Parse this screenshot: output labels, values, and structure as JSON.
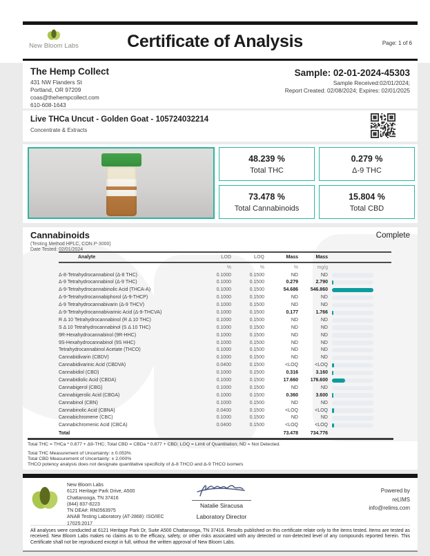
{
  "header": {
    "lab_name": "New Bloom Labs",
    "title": "Certificate of Analysis",
    "page": "Page: 1 of 6"
  },
  "client": {
    "name": "The Hemp Collect",
    "lines": [
      "431 NW Flanders St",
      "Portland, OR 97209",
      "coas@thehempcollect.com",
      "610-608-1643"
    ]
  },
  "sample": {
    "id": "Sample: 02-01-2024-45303",
    "lines": [
      "Sample Received:02/01/2024;",
      "Report Created: 02/08/2024; Expires: 02/01/2025"
    ]
  },
  "product": {
    "name": "Live THCa Uncut - Golden Goat - 105724032214",
    "category": "Concentrate & Extracts"
  },
  "summary_boxes": [
    {
      "value": "48.239 %",
      "label": "Total THC"
    },
    {
      "value": "0.279 %",
      "label": "Δ-9 THC"
    },
    {
      "value": "73.478 %",
      "label": "Total Cannabinoids"
    },
    {
      "value": "15.804 %",
      "label": "Total CBD"
    }
  ],
  "cannabinoids": {
    "title": "Cannabinoids",
    "status": "Complete",
    "method": "(Testing Method HPLC, CON P-3000)",
    "date_tested": "Date Tested: 02/01/2024",
    "columns": {
      "analyte": "Analyte",
      "lod": "LOD",
      "loq": "LOQ",
      "mass": "Mass",
      "mgg": "Mass"
    },
    "units": {
      "lod": "%",
      "loq": "%",
      "mass": "%",
      "mgg": "mg/g"
    },
    "max_bar_value": 54.686,
    "rows": [
      {
        "analyte": "Δ-8-Tetrahydrocannabinol (Δ-8 THC)",
        "lod": "0.1000",
        "loq": "0.1500",
        "mass": "ND",
        "mgg": "ND"
      },
      {
        "analyte": "Δ-9 Tetrahydrocannabinol (Δ-9 THC)",
        "lod": "0.1000",
        "loq": "0.1500",
        "mass": "0.279",
        "mgg": "2.790"
      },
      {
        "analyte": "Δ-9-Tetrahydrocannabinolic Acid (THCA-A)",
        "lod": "0.1000",
        "loq": "0.1500",
        "mass": "54.686",
        "mgg": "546.860"
      },
      {
        "analyte": "Δ-9-Tetrahydrocannabiphorol (Δ-9-THCP)",
        "lod": "0.1000",
        "loq": "0.1500",
        "mass": "ND",
        "mgg": "ND"
      },
      {
        "analyte": "Δ-9 Tetrahydrocannabivarin (Δ-9 THCV)",
        "lod": "0.1000",
        "loq": "0.1500",
        "mass": "ND",
        "mgg": "ND"
      },
      {
        "analyte": "Δ-9-Tetrahydrocannabivarinic Acid (Δ-9-THCVA)",
        "lod": "0.1000",
        "loq": "0.1500",
        "mass": "0.177",
        "mgg": "1.766"
      },
      {
        "analyte": "R Δ 10 Tetrahydrocannabinol (R Δ 10 THC)",
        "lod": "0.1000",
        "loq": "0.1500",
        "mass": "ND",
        "mgg": "ND"
      },
      {
        "analyte": "S Δ 10 Tetrahydrocannabinol (S Δ 10 THC)",
        "lod": "0.1000",
        "loq": "0.1500",
        "mass": "ND",
        "mgg": "ND"
      },
      {
        "analyte": "9R-Hexahydrocannabinol (9R-HHC)",
        "lod": "0.1000",
        "loq": "0.1500",
        "mass": "ND",
        "mgg": "ND"
      },
      {
        "analyte": "9S-Hexahydrocannabinol (9S HHC)",
        "lod": "0.1000",
        "loq": "0.1500",
        "mass": "ND",
        "mgg": "ND"
      },
      {
        "analyte": "Tetrahydrocannabinol Acetate (THCO)",
        "lod": "0.1000",
        "loq": "0.1500",
        "mass": "ND",
        "mgg": "ND"
      },
      {
        "analyte": "Cannabidivarin (CBDV)",
        "lod": "0.1000",
        "loq": "0.1500",
        "mass": "ND",
        "mgg": "ND"
      },
      {
        "analyte": "Cannabidivarinic Acid (CBDVA)",
        "lod": "0.0400",
        "loq": "0.1500",
        "mass": "<LOQ",
        "mgg": "<LOQ"
      },
      {
        "analyte": "Cannabidiol (CBD)",
        "lod": "0.1000",
        "loq": "0.1500",
        "mass": "0.316",
        "mgg": "3.160"
      },
      {
        "analyte": "Cannabidiolic Acid (CBDA)",
        "lod": "0.1000",
        "loq": "0.1500",
        "mass": "17.660",
        "mgg": "176.600"
      },
      {
        "analyte": "Cannabigerol (CBG)",
        "lod": "0.1000",
        "loq": "0.1500",
        "mass": "ND",
        "mgg": "ND"
      },
      {
        "analyte": "Cannabigerolic Acid (CBGA)",
        "lod": "0.1000",
        "loq": "0.1500",
        "mass": "0.360",
        "mgg": "3.600"
      },
      {
        "analyte": "Cannabinol (CBN)",
        "lod": "0.1000",
        "loq": "0.1500",
        "mass": "ND",
        "mgg": "ND"
      },
      {
        "analyte": "Cannabinolic Acid (CBNA)",
        "lod": "0.0400",
        "loq": "0.1500",
        "mass": "<LOQ",
        "mgg": "<LOQ"
      },
      {
        "analyte": "Cannabichromene (CBC)",
        "lod": "0.1000",
        "loq": "0.1500",
        "mass": "ND",
        "mgg": "ND"
      },
      {
        "analyte": "Cannabichromenic Acid (CBCA)",
        "lod": "0.0400",
        "loq": "0.1500",
        "mass": "<LOQ",
        "mgg": "<LOQ"
      }
    ],
    "total": {
      "label": "Total",
      "mass": "73.478",
      "mgg": "734.776"
    },
    "footnote1": "Total THC = THCa * 0.877 + Δ9-THC; Total CBD = CBDa * 0.877 + CBD; LOQ = Limit of Quantitation; ND = Not Detected.",
    "footnotes": [
      "Total THC Measurement of Uncertainty: ± 0.053%",
      "Total CBD Measurement of Uncertainty: ± 2.000%",
      "THCO potency analysis does not designate quantitative specificity of Δ-8 THCO and Δ-9 THCO isomers"
    ]
  },
  "footer": {
    "lab_lines": [
      "New Bloom Labs",
      "6121 Heritage Park Drive, A500",
      "Chattanooga, TN 37416",
      "(844) 837-8223",
      "TN DEA#: RN0563975",
      "ANAB Testing Laboratory (AT-2868): ISO/IEC",
      "17025:2017"
    ],
    "signer_name": "Natalie Siracusa",
    "signer_title": "Laboratory Director",
    "powered_by": "Powered by",
    "lims_name": "reLIMS",
    "lims_email": "info@relims.com",
    "disclaimer": "All analyses were conducted at 6121 Heritage Park Dr, Suite A500 Chattanooga, TN 37416. Results published on this certificate relate only to the items tested. Items are tested as received. New Bloom Labs makes no claims as to the efficacy, safety, or other risks associated with any detected or non-detected level of any compounds reported herein. This Certificate shall not be reproduced except in full, without the written approval of New Bloom Labs."
  },
  "colors": {
    "accent_teal": "#0e9c9e",
    "box_border_teal": "#2db5a1",
    "rule_black": "#161616",
    "bar_track_gray": "#e9edf1"
  }
}
